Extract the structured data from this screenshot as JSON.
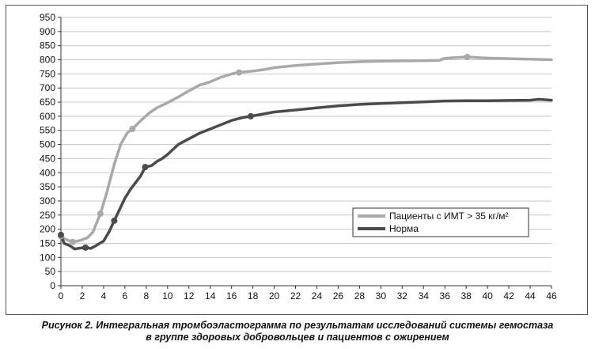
{
  "caption": {
    "line1": "Рисунок 2.  Интегральная тромбоэластограмма по результатам исследований системы гемостаза",
    "line2": "в группе здоровых добровольцев и пациентов с ожирением"
  },
  "chart_data": {
    "type": "line",
    "title": "",
    "xlabel": "",
    "ylabel": "",
    "xlim": [
      0,
      46
    ],
    "ylim": [
      0,
      950
    ],
    "x_ticks": [
      0,
      2,
      4,
      6,
      8,
      10,
      12,
      14,
      16,
      18,
      20,
      22,
      24,
      26,
      28,
      30,
      32,
      34,
      36,
      38,
      40,
      42,
      44,
      46
    ],
    "y_ticks": [
      0,
      50,
      100,
      150,
      200,
      250,
      300,
      350,
      400,
      450,
      500,
      550,
      600,
      650,
      700,
      750,
      800,
      850,
      900,
      950
    ],
    "grid": "horizontal",
    "legend_position": "right",
    "series": [
      {
        "name": "Пациенты с ИМТ > 35 кг/м²",
        "color": "#a9a9a9",
        "x": [
          0,
          0.5,
          1.1,
          1.8,
          2.5,
          3.0,
          3.7,
          4.3,
          5.0,
          5.6,
          6.2,
          6.7,
          7.5,
          8.3,
          9.0,
          10.0,
          11.0,
          12.0,
          13.0,
          14.0,
          15.0,
          16.0,
          16.7,
          18.0,
          19.0,
          20.0,
          22.0,
          24.0,
          26.0,
          28.0,
          30.0,
          32.0,
          34.0,
          35.5,
          36.0,
          37.0,
          38.1,
          39.0,
          40.0,
          42.0,
          44.0,
          46.0
        ],
        "values": [
          175,
          163,
          155,
          160,
          170,
          190,
          255,
          330,
          430,
          500,
          540,
          555,
          585,
          612,
          630,
          648,
          668,
          690,
          710,
          722,
          738,
          750,
          755,
          760,
          765,
          772,
          780,
          785,
          790,
          793,
          795,
          796,
          797,
          798,
          805,
          808,
          810,
          808,
          806,
          804,
          802,
          800
        ],
        "markers_x": [
          0,
          1.1,
          3.7,
          6.7,
          16.7,
          38.1
        ],
        "markers_y": [
          175,
          155,
          255,
          555,
          755,
          810
        ]
      },
      {
        "name": "Норма",
        "color": "#4b4b4b",
        "x": [
          0,
          0.3,
          0.8,
          1.3,
          1.8,
          2.3,
          2.8,
          3.3,
          4.0,
          4.5,
          5.0,
          5.5,
          6.0,
          6.5,
          7.0,
          7.5,
          7.9,
          8.5,
          9.0,
          9.5,
          10.0,
          11.0,
          12.0,
          13.0,
          14.0,
          15.0,
          16.0,
          17.0,
          17.8,
          19.0,
          20.0,
          22.0,
          24.0,
          26.0,
          28.0,
          30.0,
          32.0,
          34.0,
          36.0,
          38.0,
          40.0,
          42.0,
          44.0,
          44.8,
          46.0
        ],
        "values": [
          180,
          150,
          142,
          130,
          133,
          135,
          132,
          142,
          158,
          190,
          230,
          270,
          310,
          340,
          365,
          390,
          420,
          425,
          440,
          450,
          465,
          500,
          520,
          540,
          555,
          570,
          585,
          595,
          600,
          608,
          615,
          622,
          630,
          637,
          642,
          645,
          648,
          651,
          654,
          655,
          655,
          656,
          657,
          660,
          657
        ],
        "markers_x": [
          0,
          2.3,
          5.0,
          7.9,
          17.8
        ],
        "markers_y": [
          180,
          135,
          230,
          420,
          600
        ]
      }
    ]
  }
}
